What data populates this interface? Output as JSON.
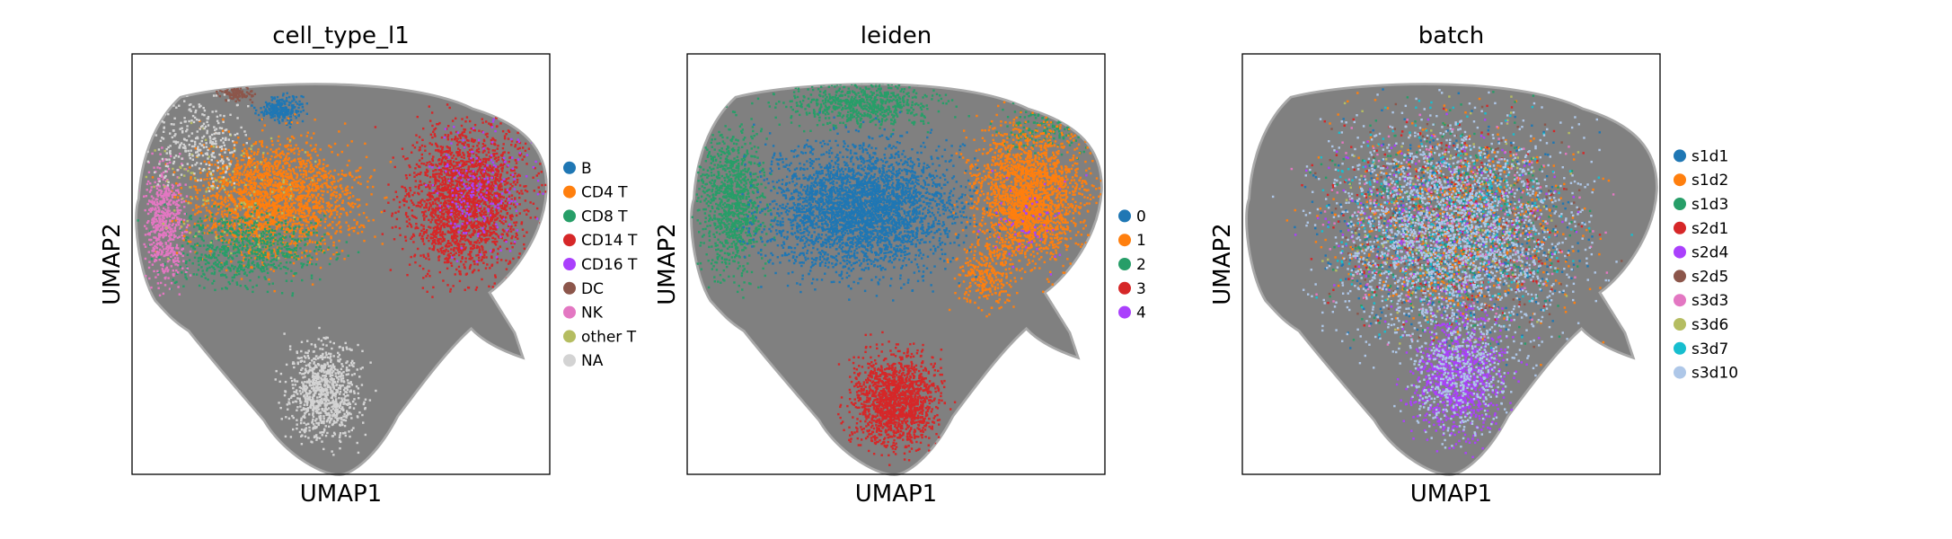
{
  "chart_data": [
    {
      "type": "scatter",
      "title": "cell_type_l1",
      "xlabel": "UMAP1",
      "ylabel": "UMAP2",
      "xticks": [],
      "yticks": [],
      "grid": false,
      "legend_position": "right",
      "background_color": "#808080",
      "categories": [
        {
          "name": "B",
          "color": "#1f77b4"
        },
        {
          "name": "CD4 T",
          "color": "#ff7f0e"
        },
        {
          "name": "CD8 T",
          "color": "#279e68"
        },
        {
          "name": "CD14 T",
          "color": "#d62728"
        },
        {
          "name": "CD16 T",
          "color": "#aa40fc"
        },
        {
          "name": "DC",
          "color": "#8c564b"
        },
        {
          "name": "NK",
          "color": "#e377c2"
        },
        {
          "name": "other T",
          "color": "#b5bd61"
        },
        {
          "name": "NA",
          "color": "#d3d3d3"
        }
      ]
    },
    {
      "type": "scatter",
      "title": "leiden",
      "xlabel": "UMAP1",
      "ylabel": "UMAP2",
      "xticks": [],
      "yticks": [],
      "grid": false,
      "legend_position": "right",
      "background_color": "#808080",
      "categories": [
        {
          "name": "0",
          "color": "#1f77b4"
        },
        {
          "name": "1",
          "color": "#ff7f0e"
        },
        {
          "name": "2",
          "color": "#279e68"
        },
        {
          "name": "3",
          "color": "#d62728"
        },
        {
          "name": "4",
          "color": "#aa40fc"
        }
      ]
    },
    {
      "type": "scatter",
      "title": "batch",
      "xlabel": "UMAP1",
      "ylabel": "UMAP2",
      "xticks": [],
      "yticks": [],
      "grid": false,
      "legend_position": "right",
      "background_color": "#808080",
      "categories": [
        {
          "name": "s1d1",
          "color": "#1f77b4"
        },
        {
          "name": "s1d2",
          "color": "#ff7f0e"
        },
        {
          "name": "s1d3",
          "color": "#279e68"
        },
        {
          "name": "s2d1",
          "color": "#d62728"
        },
        {
          "name": "s2d4",
          "color": "#aa40fc"
        },
        {
          "name": "s2d5",
          "color": "#8c564b"
        },
        {
          "name": "s3d3",
          "color": "#e377c2"
        },
        {
          "name": "s3d6",
          "color": "#b5bd61"
        },
        {
          "name": "s3d7",
          "color": "#17becf"
        },
        {
          "name": "s3d10",
          "color": "#aec7e8"
        }
      ]
    }
  ]
}
